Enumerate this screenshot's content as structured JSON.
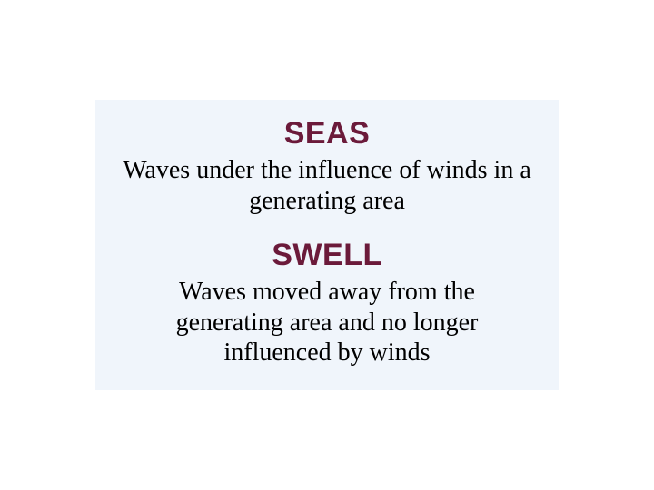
{
  "terms": [
    {
      "heading": "SEAS",
      "definition": "Waves under the influence of winds in a generating area"
    },
    {
      "heading": "SWELL",
      "definition": "Waves moved away from the generating area and no longer influenced by winds"
    }
  ],
  "styles": {
    "heading_color": "#6b1a3a",
    "heading_fontsize": 34,
    "heading_fontfamily": "Arial",
    "heading_fontweight": 900,
    "definition_color": "#000000",
    "definition_fontsize": 28,
    "definition_fontfamily": "Times New Roman",
    "box_background": "#f0f5fb",
    "page_background": "#ffffff"
  }
}
